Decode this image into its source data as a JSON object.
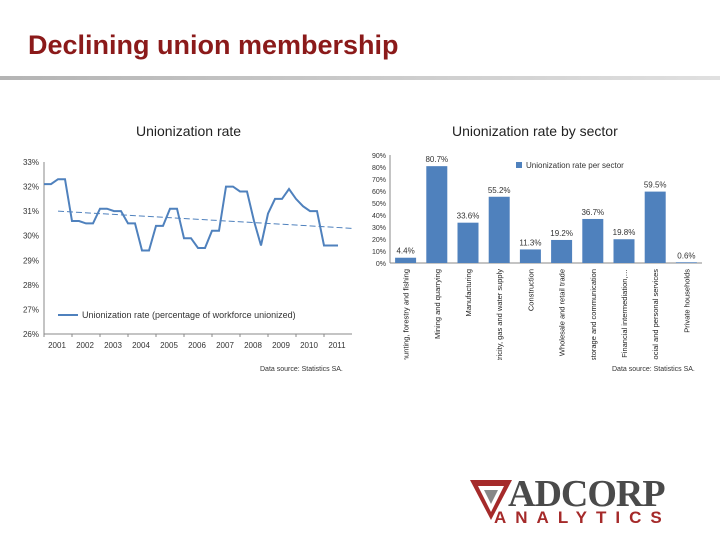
{
  "slide": {
    "title": "Declining union membership"
  },
  "left_chart": {
    "title": "Unionization rate",
    "source": "Data source: Statistics SA."
  },
  "right_chart": {
    "title": "Unionization rate by sector",
    "source": "Data source: Statistics SA."
  },
  "logo": {
    "name": "ADCORP",
    "sub": "ANALYTICS"
  },
  "colors": {
    "title": "#8b1a1a",
    "series": "#4f81bd",
    "trend": "#4f81bd"
  },
  "chart_data": [
    {
      "type": "line",
      "title": "Unionization rate",
      "y_tick_labels": [
        "33%",
        "32%",
        "31%",
        "30%",
        "29%",
        "28%",
        "27%",
        "26%"
      ],
      "x_tick_labels": [
        "2001",
        "2002",
        "2003",
        "2004",
        "2005",
        "2006",
        "2007",
        "2008",
        "2009",
        "2010",
        "2011"
      ],
      "ylim": [
        26,
        33
      ],
      "xlim": [
        2001,
        2012
      ],
      "legend": {
        "label": "Unionization rate (percentage of workforce unionized)",
        "position": "bottom-left"
      },
      "trendline": {
        "start": 31.0,
        "end": 30.3
      },
      "series": [
        {
          "name": "Unionization rate (percentage of workforce unionized)",
          "x": [
            2001.0,
            2001.25,
            2001.5,
            2001.75,
            2002.0,
            2002.25,
            2002.5,
            2002.75,
            2003.0,
            2003.25,
            2003.5,
            2003.75,
            2004.0,
            2004.25,
            2004.5,
            2004.75,
            2005.0,
            2005.25,
            2005.5,
            2005.75,
            2006.0,
            2006.25,
            2006.5,
            2006.75,
            2007.0,
            2007.25,
            2007.5,
            2007.75,
            2008.0,
            2008.25,
            2008.5,
            2008.75,
            2009.0,
            2009.25,
            2009.5,
            2009.75,
            2010.0,
            2010.25,
            2010.5,
            2010.75,
            2011.0,
            2011.25,
            2011.5
          ],
          "y": [
            32.1,
            32.1,
            32.3,
            32.3,
            30.6,
            30.6,
            30.5,
            30.5,
            31.1,
            31.1,
            31.0,
            31.0,
            30.5,
            30.5,
            29.4,
            29.4,
            30.4,
            30.4,
            31.1,
            31.1,
            29.9,
            29.9,
            29.5,
            29.5,
            30.2,
            30.2,
            32.0,
            32.0,
            31.8,
            31.8,
            30.6,
            29.6,
            30.9,
            31.5,
            31.5,
            31.9,
            31.5,
            31.2,
            31.0,
            31.0,
            29.6,
            29.6,
            29.6
          ]
        }
      ]
    },
    {
      "type": "bar",
      "title": "Unionization rate by sector",
      "categories": [
        "Agriculture, hunting, forestry and fishing",
        "Mining and quarrying",
        "Manufacturing",
        "Electricity, gas and water supply",
        "Construction",
        "Wholesale and retail trade",
        "Transport, storage and communication",
        "Financial intermediation,…",
        "Community, social and personal services",
        "Private households"
      ],
      "values": [
        4.4,
        80.7,
        33.6,
        55.2,
        11.3,
        19.2,
        36.7,
        19.8,
        59.5,
        0.6
      ],
      "data_labels": [
        "4.4%",
        "80.7%",
        "33.6%",
        "55.2%",
        "11.3%",
        "19.2%",
        "36.7%",
        "19.8%",
        "59.5%",
        "0.6%"
      ],
      "y_tick_labels": [
        "90%",
        "80%",
        "70%",
        "60%",
        "50%",
        "40%",
        "30%",
        "20%",
        "10%",
        "0%"
      ],
      "ylim": [
        0,
        90
      ],
      "legend": {
        "label": "Unionization rate per sector",
        "position": "top-right"
      }
    }
  ]
}
